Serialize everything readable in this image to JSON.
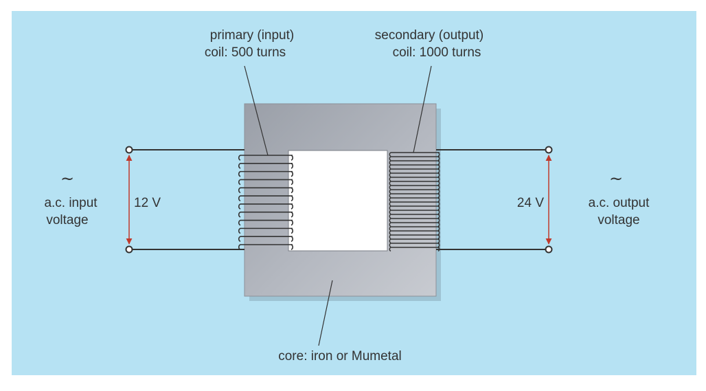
{
  "labels": {
    "primary_line1": "primary (input)",
    "primary_line2": "coil: 500 turns",
    "secondary_line1": "secondary (output)",
    "secondary_line2": "coil: 1000 turns",
    "core": "core: iron or Mumetal",
    "input_symbol": "~",
    "input_line1": "a.c. input",
    "input_line2": "voltage",
    "input_voltage": "12 V",
    "output_symbol": "~",
    "output_line1": "a.c. output",
    "output_line2": "voltage",
    "output_voltage": "24 V"
  },
  "coils": {
    "primary_turns_shown": 12,
    "secondary_turns_shown": 24
  },
  "colors": {
    "background": "#b6e2f3",
    "core": "#a9adb6",
    "wire": "#333333",
    "voltage_arrow": "#c0392b"
  }
}
